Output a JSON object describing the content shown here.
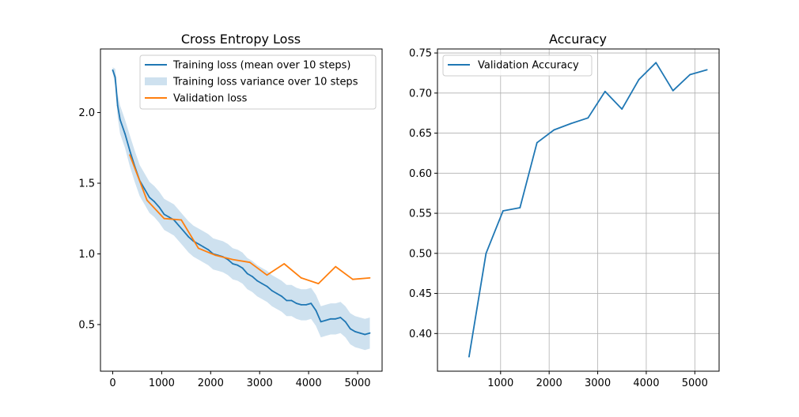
{
  "chart_data": [
    {
      "type": "line",
      "title": "Cross Entropy Loss",
      "xlabel": "",
      "ylabel": "",
      "xlim": [
        -250,
        5500
      ],
      "ylim": [
        0.17,
        2.45
      ],
      "xticks": [
        0,
        1000,
        2000,
        3000,
        4000,
        5000
      ],
      "yticks": [
        0.5,
        1.0,
        1.5,
        2.0
      ],
      "xtick_labels": [
        "0",
        "1000",
        "2000",
        "3000",
        "4000",
        "5000"
      ],
      "ytick_labels": [
        "0.5",
        "1.0",
        "1.5",
        "2.0"
      ],
      "grid": false,
      "legend_position": "top-right",
      "series": [
        {
          "name": "Training loss (mean over 10 steps)",
          "kind": "line",
          "color": "#1f77b4",
          "x": [
            0,
            50,
            100,
            150,
            250,
            350,
            450,
            550,
            650,
            750,
            850,
            950,
            1050,
            1150,
            1250,
            1350,
            1450,
            1550,
            1650,
            1750,
            1850,
            1950,
            2050,
            2150,
            2250,
            2350,
            2450,
            2550,
            2650,
            2750,
            2850,
            2950,
            3050,
            3150,
            3250,
            3350,
            3450,
            3550,
            3650,
            3750,
            3850,
            3950,
            4050,
            4150,
            4250,
            4350,
            4450,
            4550,
            4650,
            4750,
            4850,
            4950,
            5050,
            5150,
            5250
          ],
          "values": [
            2.3,
            2.25,
            2.05,
            1.95,
            1.85,
            1.73,
            1.62,
            1.52,
            1.46,
            1.4,
            1.37,
            1.33,
            1.28,
            1.26,
            1.24,
            1.2,
            1.16,
            1.12,
            1.09,
            1.07,
            1.05,
            1.03,
            1.0,
            0.99,
            0.98,
            0.96,
            0.93,
            0.92,
            0.9,
            0.86,
            0.84,
            0.81,
            0.79,
            0.77,
            0.74,
            0.72,
            0.7,
            0.67,
            0.67,
            0.65,
            0.64,
            0.64,
            0.65,
            0.6,
            0.52,
            0.53,
            0.54,
            0.54,
            0.55,
            0.52,
            0.47,
            0.45,
            0.44,
            0.43,
            0.44
          ]
        },
        {
          "name": "Training loss variance over 10 steps",
          "kind": "band",
          "color": "#1f77b4",
          "opacity": 0.22,
          "x": [
            0,
            50,
            100,
            150,
            250,
            350,
            450,
            550,
            650,
            750,
            850,
            950,
            1050,
            1150,
            1250,
            1350,
            1450,
            1550,
            1650,
            1750,
            1850,
            1950,
            2050,
            2150,
            2250,
            2350,
            2450,
            2550,
            2650,
            2750,
            2850,
            2950,
            3050,
            3150,
            3250,
            3350,
            3450,
            3550,
            3650,
            3750,
            3850,
            3950,
            4050,
            4150,
            4250,
            4350,
            4450,
            4550,
            4650,
            4750,
            4850,
            4950,
            5050,
            5150,
            5250
          ],
          "halfwidth": [
            0.02,
            0.06,
            0.08,
            0.1,
            0.1,
            0.11,
            0.11,
            0.11,
            0.11,
            0.11,
            0.11,
            0.11,
            0.11,
            0.11,
            0.11,
            0.11,
            0.11,
            0.11,
            0.11,
            0.11,
            0.11,
            0.11,
            0.11,
            0.11,
            0.11,
            0.11,
            0.11,
            0.11,
            0.11,
            0.11,
            0.11,
            0.11,
            0.11,
            0.11,
            0.11,
            0.11,
            0.11,
            0.11,
            0.11,
            0.11,
            0.11,
            0.11,
            0.11,
            0.11,
            0.11,
            0.11,
            0.11,
            0.11,
            0.11,
            0.11,
            0.11,
            0.11,
            0.11,
            0.11,
            0.11
          ]
        },
        {
          "name": "Validation loss",
          "kind": "line",
          "color": "#ff7f0e",
          "x": [
            350,
            700,
            1050,
            1400,
            1750,
            2100,
            2450,
            2800,
            3150,
            3500,
            3850,
            4200,
            4550,
            4900,
            5250
          ],
          "values": [
            1.7,
            1.38,
            1.25,
            1.24,
            1.04,
            0.99,
            0.96,
            0.94,
            0.85,
            0.93,
            0.83,
            0.79,
            0.91,
            0.82,
            0.83
          ]
        }
      ]
    },
    {
      "type": "line",
      "title": "Accuracy",
      "xlabel": "",
      "ylabel": "",
      "xlim": [
        -300,
        5500
      ],
      "ylim": [
        0.353,
        0.755
      ],
      "xticks": [
        1000,
        2000,
        3000,
        4000,
        5000
      ],
      "yticks": [
        0.4,
        0.45,
        0.5,
        0.55,
        0.6,
        0.65,
        0.7,
        0.75
      ],
      "xtick_labels": [
        "1000",
        "2000",
        "3000",
        "4000",
        "5000"
      ],
      "ytick_labels": [
        "0.40",
        "0.45",
        "0.50",
        "0.55",
        "0.60",
        "0.65",
        "0.70",
        "0.75"
      ],
      "grid": true,
      "legend_position": "top-left",
      "series": [
        {
          "name": "Validation Accuracy",
          "kind": "line",
          "color": "#1f77b4",
          "x": [
            350,
            700,
            1050,
            1400,
            1750,
            2100,
            2450,
            2800,
            3150,
            3500,
            3850,
            4200,
            4550,
            4900,
            5250
          ],
          "values": [
            0.371,
            0.5,
            0.553,
            0.557,
            0.638,
            0.654,
            0.662,
            0.669,
            0.702,
            0.68,
            0.717,
            0.738,
            0.703,
            0.723,
            0.729
          ]
        }
      ]
    }
  ]
}
